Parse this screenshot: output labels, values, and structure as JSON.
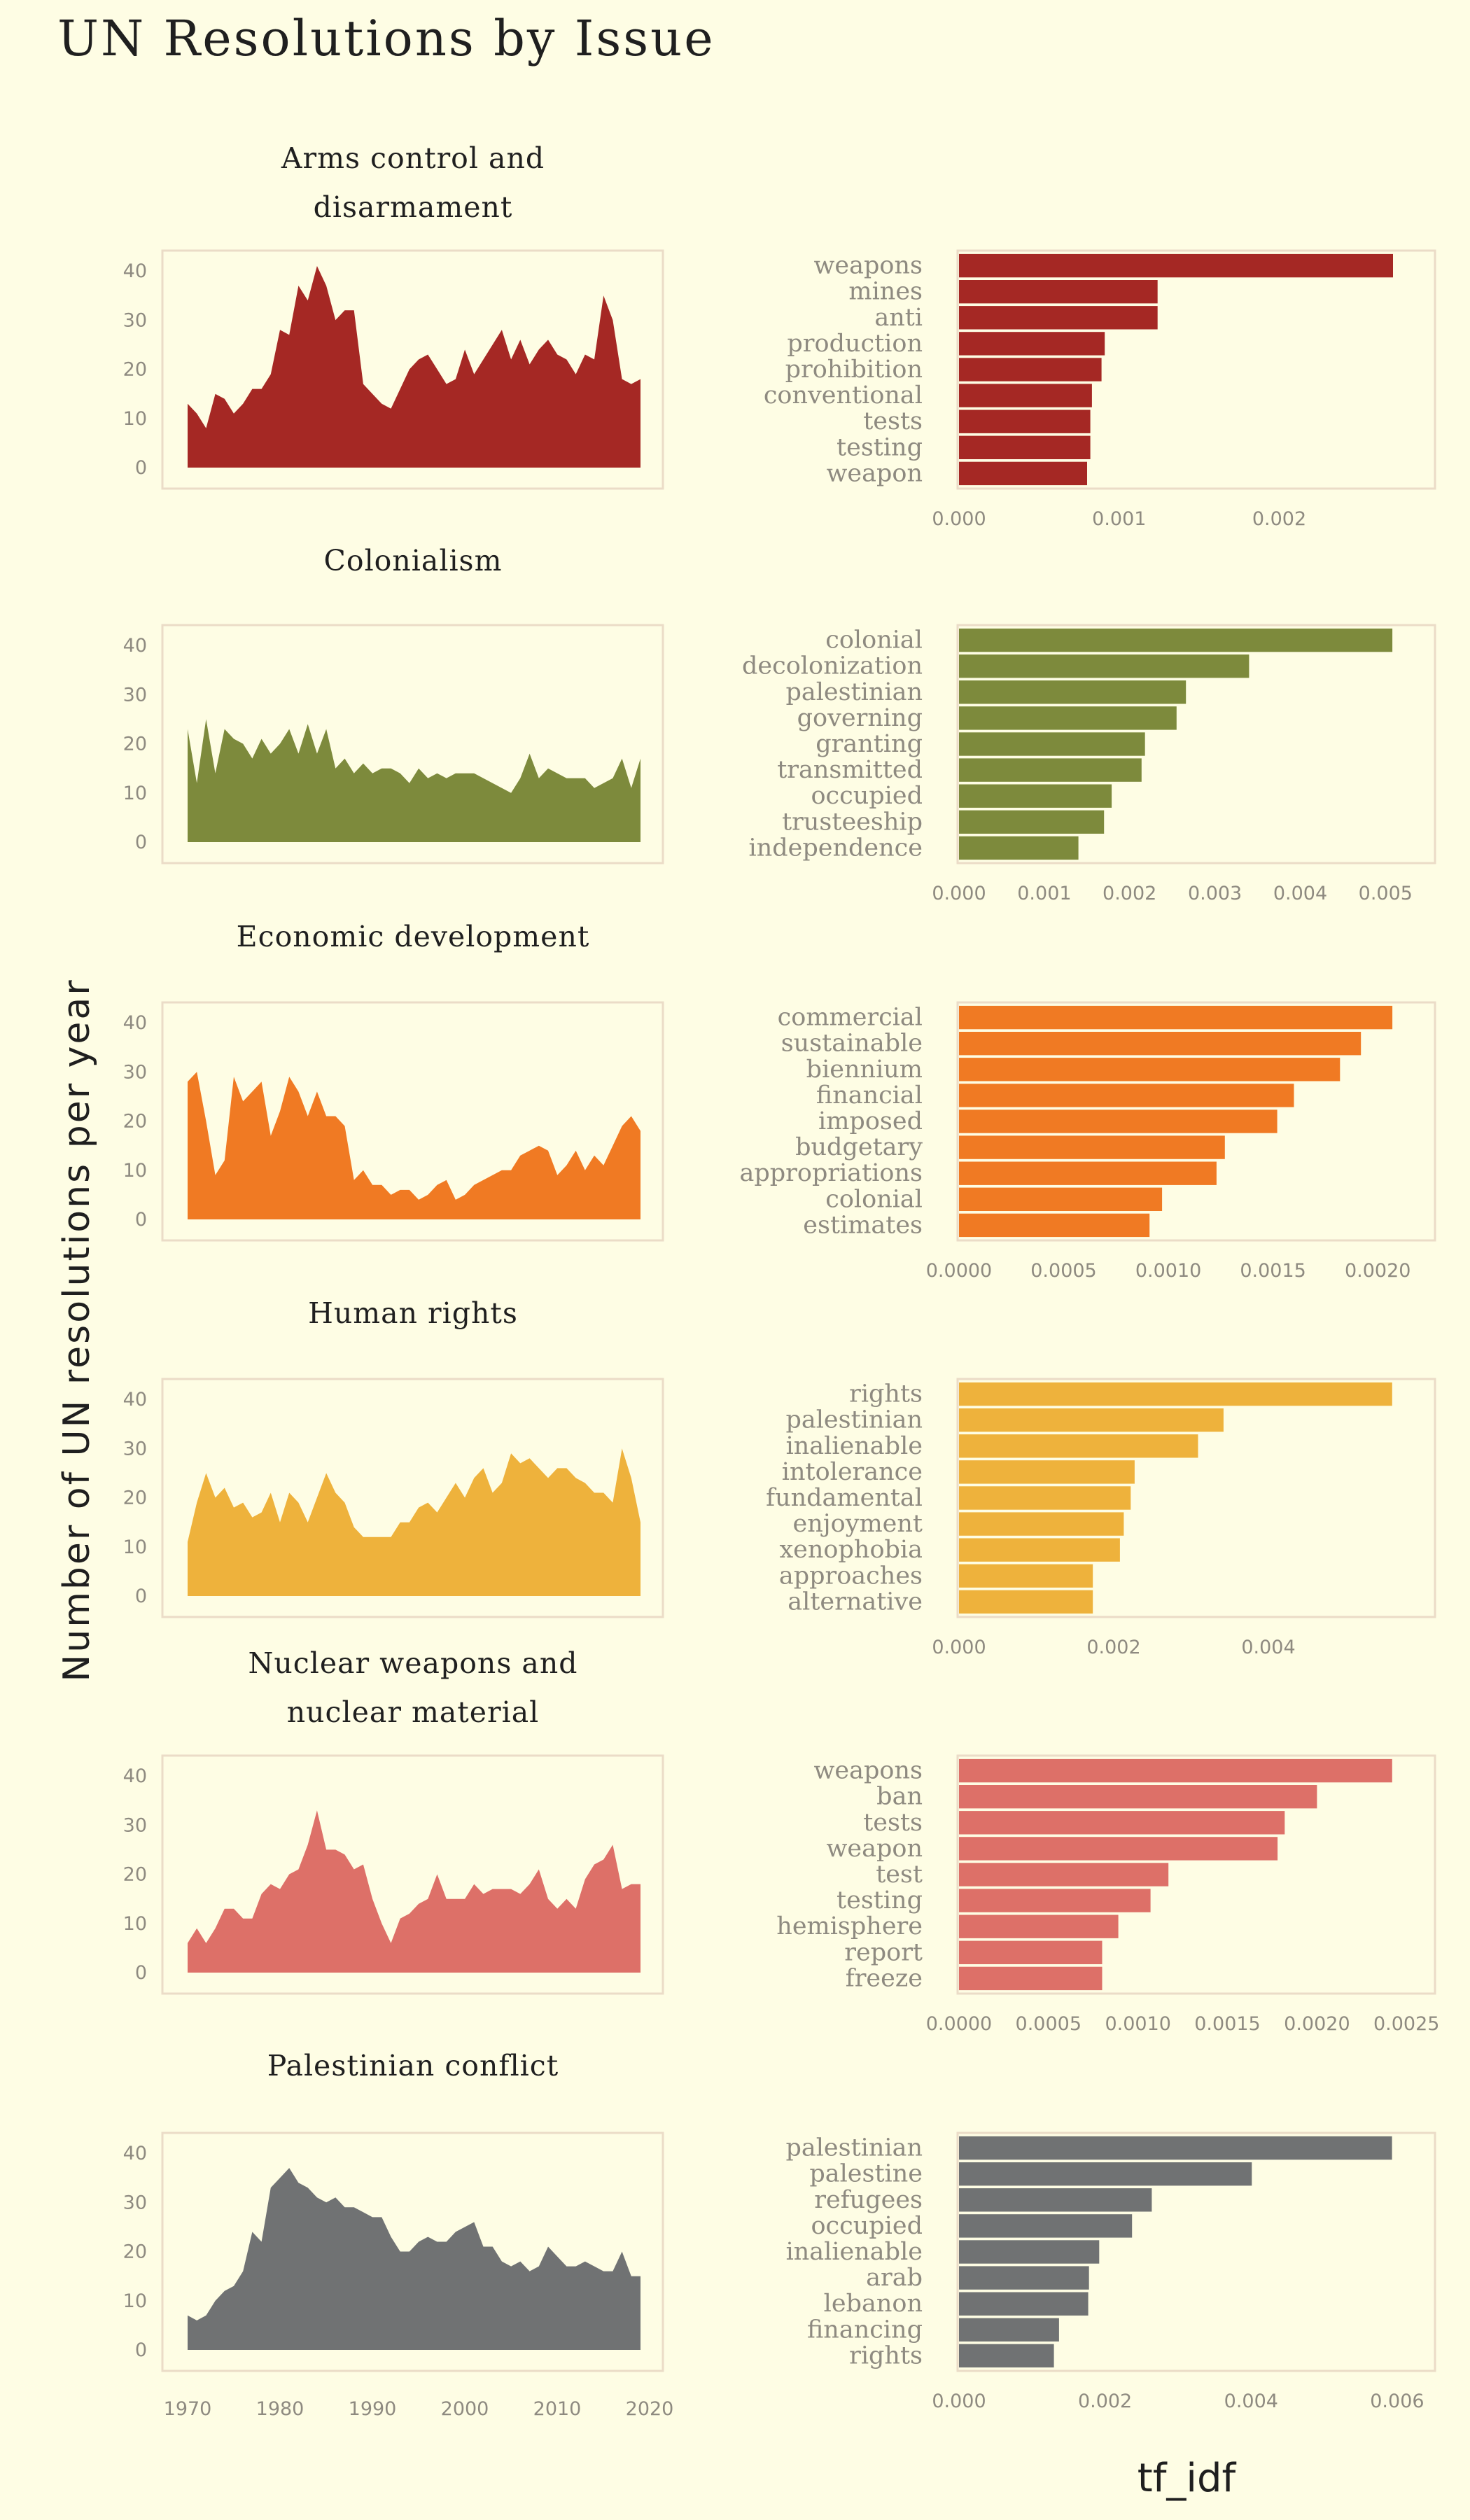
{
  "title": "UN Resolutions by Issue",
  "ylabel": "Number of UN resolutions per year",
  "xlabel": "tf_idf",
  "chart_data": {
    "type": "area",
    "years": [
      1970,
      1971,
      1972,
      1973,
      1974,
      1975,
      1976,
      1977,
      1978,
      1979,
      1980,
      1981,
      1982,
      1983,
      1984,
      1985,
      1986,
      1987,
      1988,
      1989,
      1990,
      1991,
      1992,
      1993,
      1994,
      1995,
      1996,
      1997,
      1998,
      1999,
      2000,
      2001,
      2002,
      2003,
      2004,
      2005,
      2006,
      2007,
      2008,
      2009,
      2010,
      2011,
      2012,
      2013,
      2014,
      2015,
      2016,
      2017,
      2018,
      2019
    ],
    "x_ticks": [
      1970,
      1980,
      1990,
      2000,
      2010,
      2020
    ],
    "y_ticks": [
      0,
      10,
      20,
      30,
      40
    ],
    "ylim": [
      0,
      43
    ],
    "panels": [
      {
        "issue": "Arms control and disarmament",
        "color": "#a52824",
        "counts": [
          13,
          11,
          8,
          15,
          14,
          11,
          13,
          16,
          16,
          19,
          28,
          27,
          37,
          34,
          41,
          37,
          30,
          32,
          32,
          17,
          15,
          13,
          12,
          16,
          20,
          22,
          23,
          20,
          17,
          18,
          24,
          19,
          22,
          25,
          28,
          22,
          26,
          21,
          24,
          26,
          23,
          22,
          19,
          23,
          22,
          35,
          30,
          18,
          17,
          18
        ],
        "terms": [
          "weapons",
          "mines",
          "anti",
          "production",
          "prohibition",
          "conventional",
          "tests",
          "testing",
          "weapon"
        ],
        "tfidf": [
          0.00271,
          0.00124,
          0.00124,
          0.00091,
          0.00089,
          0.00083,
          0.00082,
          0.00082,
          0.0008
        ],
        "tf_ticks": [
          "0.000",
          "0.001",
          "0.002"
        ],
        "tf_tick_vals": [
          0,
          0.001,
          0.002
        ],
        "tf_max": 0.00285
      },
      {
        "issue": "Colonialism",
        "color": "#7d8a3c",
        "counts": [
          23,
          12,
          25,
          14,
          23,
          21,
          20,
          17,
          21,
          18,
          20,
          23,
          18,
          24,
          18,
          23,
          15,
          17,
          14,
          16,
          14,
          15,
          15,
          14,
          12,
          15,
          13,
          14,
          13,
          14,
          14,
          14,
          13,
          12,
          11,
          10,
          13,
          18,
          13,
          15,
          14,
          13,
          13,
          13,
          11,
          12,
          13,
          17,
          11,
          17
        ],
        "terms": [
          "colonial",
          "decolonization",
          "palestinian",
          "governing",
          "granting",
          "transmitted",
          "occupied",
          "trusteeship",
          "independence"
        ],
        "tfidf": [
          0.00508,
          0.0034,
          0.00266,
          0.00255,
          0.00218,
          0.00214,
          0.00179,
          0.0017,
          0.0014
        ],
        "tf_ticks": [
          "0.000",
          "0.001",
          "0.002",
          "0.003",
          "0.004",
          "0.005"
        ],
        "tf_tick_vals": [
          0,
          0.001,
          0.002,
          0.003,
          0.004,
          0.005
        ],
        "tf_max": 0.00535
      },
      {
        "issue": "Economic development",
        "color": "#f07a23",
        "counts": [
          28,
          30,
          20,
          9,
          12,
          29,
          24,
          26,
          28,
          17,
          22,
          29,
          26,
          21,
          26,
          21,
          21,
          19,
          8,
          10,
          7,
          7,
          5,
          6,
          6,
          4,
          5,
          7,
          8,
          4,
          5,
          7,
          8,
          9,
          10,
          10,
          13,
          14,
          15,
          14,
          9,
          11,
          14,
          10,
          13,
          11,
          15,
          19,
          21,
          18
        ],
        "terms": [
          "commercial",
          "sustainable",
          "biennium",
          "financial",
          "imposed",
          "budgetary",
          "appropriations",
          "colonial",
          "estimates"
        ],
        "tfidf": [
          0.00207,
          0.00192,
          0.00182,
          0.0016,
          0.00152,
          0.00127,
          0.00123,
          0.00097,
          0.00091
        ],
        "tf_ticks": [
          "0.0000",
          "0.0005",
          "0.0010",
          "0.0015",
          "0.0020"
        ],
        "tf_tick_vals": [
          0,
          0.0005,
          0.001,
          0.0015,
          0.002
        ],
        "tf_max": 0.00218
      },
      {
        "issue": "Human rights",
        "color": "#eeb23c",
        "counts": [
          11,
          19,
          25,
          20,
          22,
          18,
          19,
          16,
          17,
          21,
          15,
          21,
          19,
          15,
          20,
          25,
          21,
          19,
          14,
          12,
          12,
          12,
          12,
          15,
          15,
          18,
          19,
          17,
          20,
          23,
          20,
          24,
          26,
          21,
          23,
          29,
          27,
          28,
          26,
          24,
          26,
          26,
          24,
          23,
          21,
          21,
          19,
          30,
          24,
          15
        ],
        "terms": [
          "rights",
          "palestinian",
          "inalienable",
          "intolerance",
          "fundamental",
          "enjoyment",
          "xenophobia",
          "approaches",
          "alternative"
        ],
        "tfidf": [
          0.0056,
          0.00342,
          0.00309,
          0.00227,
          0.00222,
          0.00213,
          0.00208,
          0.00173,
          0.00173
        ],
        "tf_ticks": [
          "0.000",
          "0.002",
          "0.004"
        ],
        "tf_tick_vals": [
          0,
          0.002,
          0.004
        ],
        "tf_max": 0.0059
      },
      {
        "issue": "Nuclear weapons and nuclear material",
        "color": "#dd7068",
        "counts": [
          6,
          9,
          6,
          9,
          13,
          13,
          11,
          11,
          16,
          18,
          17,
          20,
          21,
          26,
          33,
          25,
          25,
          24,
          21,
          22,
          15,
          10,
          6,
          11,
          12,
          14,
          15,
          20,
          15,
          15,
          15,
          18,
          16,
          17,
          17,
          17,
          16,
          18,
          21,
          15,
          13,
          15,
          13,
          19,
          22,
          23,
          26,
          17,
          18,
          18
        ],
        "terms": [
          "weapons",
          "ban",
          "tests",
          "weapon",
          "test",
          "testing",
          "hemisphere",
          "report",
          "freeze"
        ],
        "tfidf": [
          0.00242,
          0.002,
          0.00182,
          0.00178,
          0.00117,
          0.00107,
          0.00089,
          0.0008,
          0.0008
        ],
        "tf_ticks": [
          "0.0000",
          "0.0005",
          "0.0010",
          "0.0015",
          "0.0020",
          "0.0025"
        ],
        "tf_tick_vals": [
          0,
          0.0005,
          0.001,
          0.0015,
          0.002,
          0.0025
        ],
        "tf_max": 0.00255
      },
      {
        "issue": "Palestinian conflict",
        "color": "#707273",
        "counts": [
          7,
          6,
          7,
          10,
          12,
          13,
          16,
          24,
          22,
          33,
          35,
          37,
          34,
          33,
          31,
          30,
          31,
          29,
          29,
          28,
          27,
          27,
          23,
          20,
          20,
          22,
          23,
          22,
          22,
          24,
          25,
          26,
          21,
          21,
          18,
          17,
          18,
          16,
          17,
          21,
          19,
          17,
          17,
          18,
          17,
          16,
          16,
          20,
          15,
          15
        ],
        "terms": [
          "palestinian",
          "palestine",
          "refugees",
          "occupied",
          "inalienable",
          "arab",
          "lebanon",
          "financing",
          "rights"
        ],
        "tfidf": [
          0.00593,
          0.00401,
          0.00264,
          0.00237,
          0.00192,
          0.00178,
          0.00177,
          0.00137,
          0.0013
        ],
        "tf_ticks": [
          "0.000",
          "0.002",
          "0.004",
          "0.006"
        ],
        "tf_tick_vals": [
          0,
          0.002,
          0.004,
          0.006
        ],
        "tf_max": 0.00625
      }
    ]
  }
}
